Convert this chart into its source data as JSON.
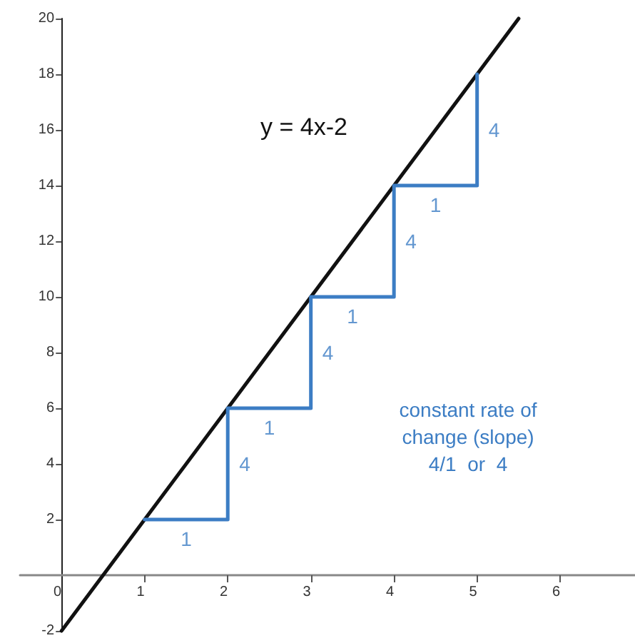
{
  "chart_data": {
    "type": "line",
    "xlim": [
      -0.5,
      6.9
    ],
    "ylim": [
      -2,
      20
    ],
    "xticks": [
      0,
      1,
      2,
      3,
      4,
      5,
      6
    ],
    "yticks": [
      -2,
      2,
      4,
      6,
      8,
      10,
      12,
      14,
      16,
      18,
      20
    ],
    "marker": "none",
    "line_style": "solid",
    "series": [
      {
        "color": "#111111",
        "x": [
          0,
          5.5
        ],
        "values": [
          -2,
          20
        ]
      },
      {
        "color": "#3c7dc4",
        "x": [
          1,
          2,
          2,
          3,
          3,
          4,
          4,
          5,
          5
        ],
        "values": [
          2,
          2,
          6,
          6,
          10,
          10,
          14,
          14,
          18
        ]
      }
    ],
    "annotations": [
      "y = 4x-2",
      "1",
      "4",
      "1",
      "4",
      "1",
      "4",
      "1",
      "4",
      "constant rate of\nchange (slope)\n4/1  or  4"
    ]
  }
}
